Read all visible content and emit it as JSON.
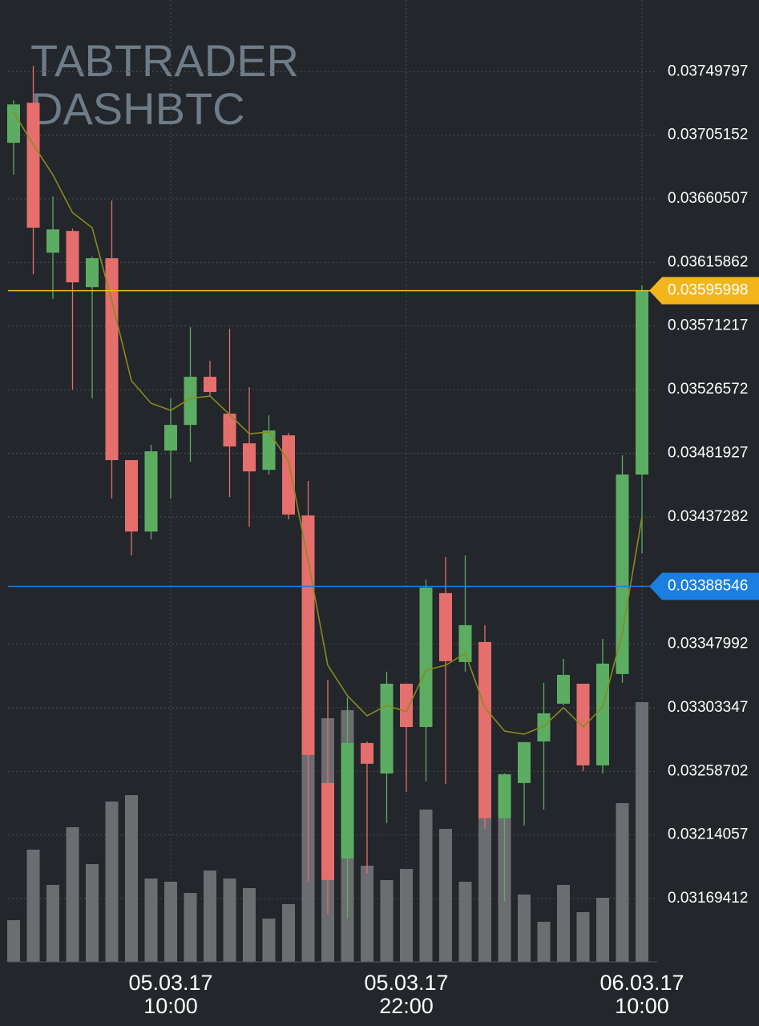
{
  "chart_data": {
    "type": "candlestick",
    "title": [
      "TABTRADER",
      "DASHBTC"
    ],
    "categories": [
      null,
      null,
      null,
      null,
      null,
      null,
      null,
      null,
      "05.03.17\n10:00",
      null,
      null,
      null,
      null,
      null,
      null,
      null,
      null,
      null,
      null,
      null,
      "05.03.17\n22:00",
      null,
      null,
      null,
      null,
      null,
      null,
      null,
      null,
      null,
      null,
      null,
      "06.03.17\n10:00"
    ],
    "open": [
      0.036998,
      0.037279,
      0.036227,
      0.036379,
      0.035985,
      0.036188,
      0.034771,
      0.03427,
      0.034838,
      0.035018,
      0.035356,
      0.035097,
      0.034889,
      0.034703,
      0.034945,
      0.034383,
      0.032505,
      0.031976,
      0.032786,
      0.032572,
      0.033202,
      0.032898,
      0.033838,
      0.033354,
      0.033495,
      0.032258,
      0.032505,
      0.032797,
      0.033062,
      0.033202,
      0.032629,
      0.03327,
      0.03467
    ],
    "high": [
      0.037296,
      0.037537,
      0.036621,
      0.036396,
      0.036199,
      0.036593,
      0.034771,
      0.034878,
      0.035204,
      0.035704,
      0.035468,
      0.035693,
      0.035283,
      0.035086,
      0.034962,
      0.034625,
      0.03323,
      0.033107,
      0.032797,
      0.033287,
      0.033202,
      0.033933,
      0.034091,
      0.034102,
      0.033613,
      0.032572,
      0.032792,
      0.033208,
      0.033376,
      0.033202,
      0.033517,
      0.034805,
      0.035997
    ],
    "low": [
      0.036773,
      0.036075,
      0.035901,
      0.035266,
      0.035204,
      0.034501,
      0.034102,
      0.034214,
      0.034501,
      0.03476,
      0.035215,
      0.034512,
      0.034304,
      0.03467,
      0.034355,
      0.031813,
      0.031588,
      0.031555,
      0.03187,
      0.032224,
      0.032443,
      0.032516,
      0.032499,
      0.033287,
      0.032184,
      0.031673,
      0.032207,
      0.032319,
      0.03305,
      0.032589,
      0.032572,
      0.033208,
      0.034119
    ],
    "close": [
      0.037267,
      0.036402,
      0.03639,
      0.036019,
      0.036188,
      0.034771,
      0.03427,
      0.034833,
      0.035018,
      0.035356,
      0.035249,
      0.034867,
      0.034692,
      0.034979,
      0.034389,
      0.032702,
      0.031825,
      0.032786,
      0.03264,
      0.033202,
      0.032898,
      0.033877,
      0.03336,
      0.033613,
      0.032258,
      0.032567,
      0.032792,
      0.032994,
      0.033264,
      0.032629,
      0.033343,
      0.03467,
      0.03595998
    ],
    "up_color": "#5cad62",
    "down_color": "#e56f6c",
    "moving_average": {
      "color": "#8a8a1e",
      "values": [
        0.037211,
        0.036986,
        0.036773,
        0.036508,
        0.036402,
        0.03589,
        0.035328,
        0.03517,
        0.03512,
        0.035204,
        0.035221,
        0.035091,
        0.034956,
        0.034968,
        0.034765,
        0.034062,
        0.033331,
        0.033118,
        0.032977,
        0.03305,
        0.033005,
        0.033298,
        0.033331,
        0.033416,
        0.033034,
        0.03287,
        0.032848,
        0.032904,
        0.033034,
        0.032898,
        0.033039,
        0.033556,
        0.034372
      ]
    },
    "volume": {
      "color": "#6c6d70",
      "axis": "y2",
      "values": [
        52,
        140,
        96,
        168,
        122,
        200,
        208,
        104,
        100,
        86,
        114,
        104,
        92,
        54,
        72,
        260,
        304,
        314,
        120,
        102,
        116,
        190,
        166,
        100,
        180,
        180,
        84,
        50,
        96,
        62,
        80,
        198,
        324
      ]
    },
    "ylim": [
      0.03125,
      0.038
    ],
    "yticks": [
      0.03749797,
      0.03705152,
      0.03660507,
      0.03615862,
      0.03571217,
      0.03526572,
      0.03481927,
      0.03437282,
      0.03347992,
      0.03303347,
      0.03258702,
      0.03214057,
      0.03169412
    ],
    "y2lim": [
      0,
      1200
    ],
    "grid": true,
    "price_lines": [
      {
        "value": 0.03595998,
        "color": "#f2b51c"
      },
      {
        "value": 0.03388546,
        "color": "#1a7fe0"
      }
    ]
  }
}
